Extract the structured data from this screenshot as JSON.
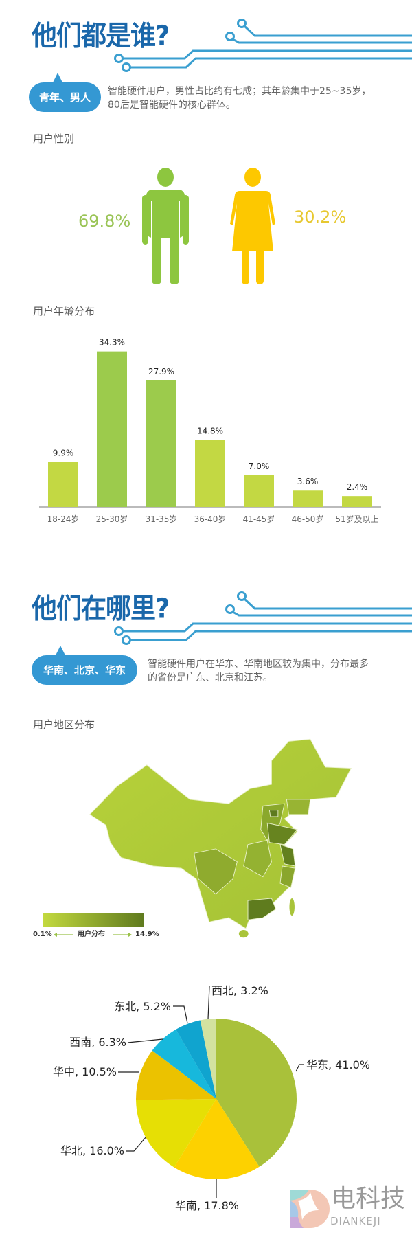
{
  "section1": {
    "title": "他们都是谁?",
    "badge": "青年、男人",
    "desc_line1": "智能硬件用户，男性占比约有七成；其年龄集中于25~35岁，",
    "desc_line2": "80后是智能硬件的核心群体。",
    "gender_label": "用户性别",
    "male_pct": "69.8%",
    "female_pct": "30.2%",
    "age_label": "用户年龄分布"
  },
  "section2": {
    "title": "他们在哪里?",
    "badge": "华南、北京、华东",
    "desc_line1": "智能硬件用户在华东、华南地区较为集中，分布最多",
    "desc_line2": "的省份是广东、北京和江苏。",
    "region_label": "用户地区分布",
    "legend": {
      "min": "0.1%",
      "label": "用户分布",
      "max": "14.9%",
      "color_low": "#c2d93f",
      "color_high": "#5f7a1e"
    }
  },
  "colors": {
    "accent": "#1a67aa",
    "circuit": "#3a9fd0",
    "male": "#8dc63f",
    "female": "#fdc800"
  },
  "watermark": {
    "cn": "电科技",
    "en": "DIANKEJI"
  },
  "chart_data": [
    {
      "type": "bar",
      "categories": [
        "18-24岁",
        "25-30岁",
        "31-35岁",
        "36-40岁",
        "41-45岁",
        "46-50岁",
        "51岁及以上"
      ],
      "values": [
        9.9,
        34.3,
        27.9,
        14.8,
        7.0,
        3.6,
        2.4
      ],
      "labels": [
        "9.9%",
        "34.3%",
        "27.9%",
        "14.8%",
        "7.0%",
        "3.6%",
        "2.4%"
      ],
      "colors": [
        "#c3d843",
        "#9ccb4c",
        "#9ccb4c",
        "#c3d843",
        "#c3d843",
        "#c3d843",
        "#c3d843"
      ],
      "grid": false
    },
    {
      "type": "pie",
      "slices": [
        {
          "name": "华东",
          "value": 41.0,
          "label": "华东, 41.0%",
          "color": "#a9c13a"
        },
        {
          "name": "华南",
          "value": 17.8,
          "label": "华南, 17.8%",
          "color": "#fdd100"
        },
        {
          "name": "华北",
          "value": 16.0,
          "label": "华北, 16.0%",
          "color": "#e6df05"
        },
        {
          "name": "华中",
          "value": 10.5,
          "label": "华中, 10.5%",
          "color": "#ebc200"
        },
        {
          "name": "西南",
          "value": 6.3,
          "label": "西南, 6.3%",
          "color": "#17b8dc"
        },
        {
          "name": "东北",
          "value": 5.2,
          "label": "东北, 5.2%",
          "color": "#10a4cf"
        },
        {
          "name": "西北",
          "value": 3.2,
          "label": "西北, 3.2%",
          "color": "#d3e2a0"
        }
      ]
    }
  ]
}
